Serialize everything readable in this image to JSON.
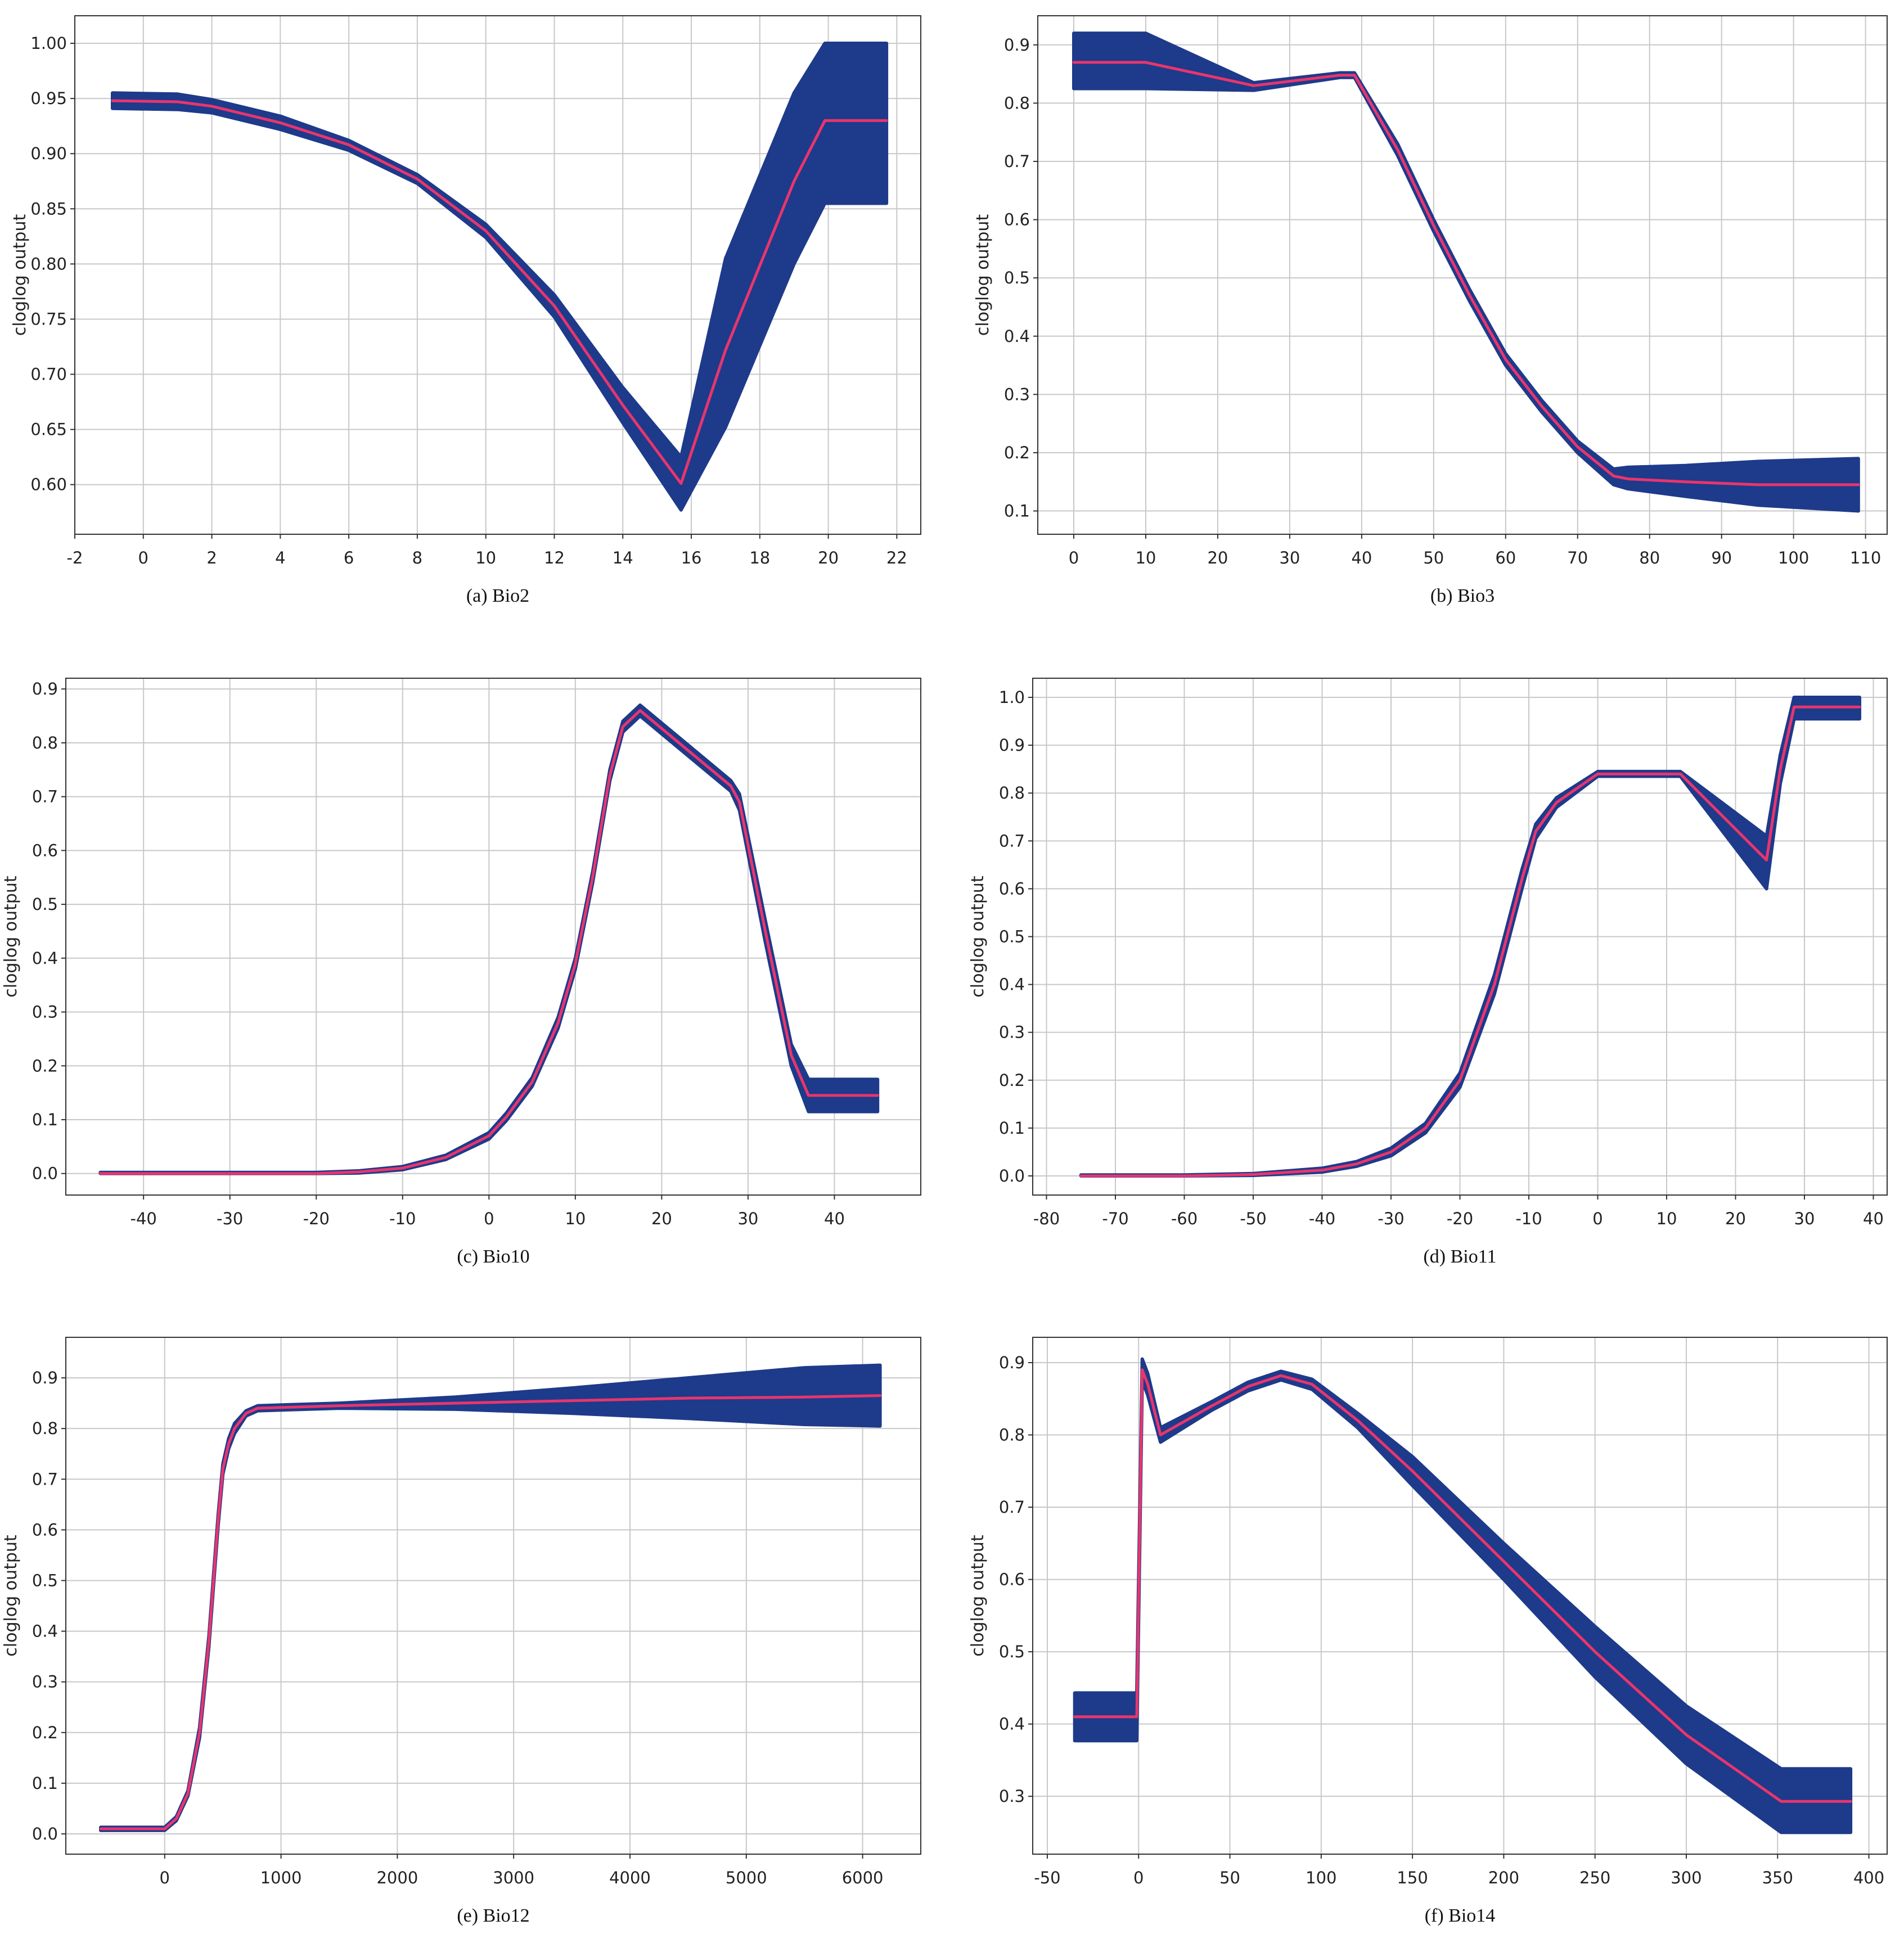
{
  "colors": {
    "band": "#1e3a8a",
    "mean_line": "#e8356d",
    "grid": "#c8c8c8",
    "frame": "#333333",
    "background": "#ffffff"
  },
  "chart_data": [
    {
      "type": "area",
      "caption": "(a)  Bio2",
      "ylabel": "cloglog output",
      "xlabel": "",
      "xlim": [
        -2,
        22.7
      ],
      "ylim": [
        0.555,
        1.025
      ],
      "xticks": [
        -2,
        0,
        2,
        4,
        6,
        8,
        10,
        12,
        14,
        16,
        18,
        20,
        22
      ],
      "xtick_labels": [
        "-2",
        "0",
        "2",
        "4",
        "6",
        "8",
        "10",
        "12",
        "14",
        "16",
        "18",
        "20",
        "22"
      ],
      "yticks": [
        0.6,
        0.65,
        0.7,
        0.75,
        0.8,
        0.85,
        0.9,
        0.95,
        1.0
      ],
      "ytick_labels": [
        "0.60",
        "0.65",
        "0.70",
        "0.75",
        "0.80",
        "0.85",
        "0.90",
        "0.95",
        "1.00"
      ],
      "grid": true,
      "series": [
        {
          "role": "mean",
          "x": [
            -0.9,
            1,
            2,
            4,
            6,
            8,
            10,
            12,
            14,
            15.7,
            17,
            19,
            19.9,
            21.7
          ],
          "y": [
            0.948,
            0.947,
            0.943,
            0.928,
            0.908,
            0.877,
            0.83,
            0.762,
            0.672,
            0.601,
            0.722,
            0.875,
            0.93,
            0.93
          ]
        },
        {
          "role": "band_upper",
          "x": [
            -0.9,
            1,
            2,
            4,
            6,
            8,
            10,
            12,
            14,
            15.7,
            17,
            19,
            19.9,
            21.7
          ],
          "y": [
            0.955,
            0.954,
            0.949,
            0.934,
            0.912,
            0.881,
            0.836,
            0.772,
            0.688,
            0.625,
            0.805,
            0.955,
            1.0,
            1.0
          ]
        },
        {
          "role": "band_lower",
          "x": [
            -0.9,
            1,
            2,
            4,
            6,
            8,
            10,
            12,
            14,
            15.7,
            17,
            19,
            19.9,
            21.7
          ],
          "y": [
            0.941,
            0.94,
            0.937,
            0.922,
            0.903,
            0.873,
            0.824,
            0.752,
            0.656,
            0.577,
            0.652,
            0.8,
            0.855,
            0.855
          ]
        }
      ]
    },
    {
      "type": "area",
      "caption": "(b)  Bio3",
      "ylabel": "cloglog output",
      "xlabel": "",
      "xlim": [
        -5,
        113
      ],
      "ylim": [
        0.06,
        0.95
      ],
      "xticks": [
        0,
        10,
        20,
        30,
        40,
        50,
        60,
        70,
        80,
        90,
        100,
        110
      ],
      "xtick_labels": [
        "0",
        "10",
        "20",
        "30",
        "40",
        "50",
        "60",
        "70",
        "80",
        "90",
        "100",
        "110"
      ],
      "yticks": [
        0.1,
        0.2,
        0.3,
        0.4,
        0.5,
        0.6,
        0.7,
        0.8,
        0.9
      ],
      "ytick_labels": [
        "0.1",
        "0.2",
        "0.3",
        "0.4",
        "0.5",
        "0.6",
        "0.7",
        "0.8",
        "0.9"
      ],
      "grid": true,
      "series": [
        {
          "role": "mean",
          "x": [
            0,
            10,
            25,
            37,
            39,
            45,
            50,
            55,
            60,
            65,
            70,
            75,
            77,
            85,
            95,
            109
          ],
          "y": [
            0.87,
            0.87,
            0.83,
            0.848,
            0.848,
            0.72,
            0.59,
            0.47,
            0.36,
            0.28,
            0.21,
            0.16,
            0.155,
            0.15,
            0.145,
            0.145
          ]
        },
        {
          "role": "band_upper",
          "x": [
            0,
            10,
            25,
            37,
            39,
            45,
            50,
            55,
            60,
            65,
            70,
            75,
            77,
            85,
            95,
            109
          ],
          "y": [
            0.92,
            0.92,
            0.835,
            0.852,
            0.852,
            0.73,
            0.6,
            0.48,
            0.37,
            0.29,
            0.22,
            0.172,
            0.175,
            0.178,
            0.185,
            0.19
          ]
        },
        {
          "role": "band_lower",
          "x": [
            0,
            10,
            25,
            37,
            39,
            45,
            50,
            55,
            60,
            65,
            70,
            75,
            77,
            85,
            95,
            109
          ],
          "y": [
            0.825,
            0.825,
            0.822,
            0.844,
            0.844,
            0.71,
            0.58,
            0.46,
            0.35,
            0.27,
            0.2,
            0.145,
            0.138,
            0.125,
            0.11,
            0.1
          ]
        }
      ]
    },
    {
      "type": "area",
      "caption": "(c)  Bio10",
      "ylabel": "cloglog output",
      "xlabel": "",
      "xlim": [
        -49,
        50
      ],
      "ylim": [
        -0.04,
        0.92
      ],
      "xticks": [
        -40,
        -30,
        -20,
        -10,
        0,
        10,
        20,
        30,
        40
      ],
      "xtick_labels": [
        "-40",
        "-30",
        "-20",
        "-10",
        "0",
        "10",
        "20",
        "30",
        "40"
      ],
      "yticks": [
        0.0,
        0.1,
        0.2,
        0.3,
        0.4,
        0.5,
        0.6,
        0.7,
        0.8,
        0.9
      ],
      "ytick_labels": [
        "0.0",
        "0.1",
        "0.2",
        "0.3",
        "0.4",
        "0.5",
        "0.6",
        "0.7",
        "0.8",
        "0.9"
      ],
      "grid": true,
      "series": [
        {
          "role": "mean",
          "x": [
            -45,
            -20,
            -15,
            -10,
            -5,
            0,
            2,
            5,
            8,
            10,
            12,
            14,
            15.5,
            17.5,
            22,
            28,
            29,
            32,
            35,
            37,
            45
          ],
          "y": [
            0.0,
            0.0,
            0.003,
            0.01,
            0.03,
            0.07,
            0.105,
            0.17,
            0.28,
            0.39,
            0.55,
            0.74,
            0.83,
            0.86,
            0.8,
            0.72,
            0.69,
            0.45,
            0.22,
            0.145,
            0.145
          ]
        },
        {
          "role": "band_upper",
          "x": [
            -45,
            -20,
            -15,
            -10,
            -5,
            0,
            2,
            5,
            8,
            10,
            12,
            14,
            15.5,
            17.5,
            22,
            28,
            29,
            32,
            35,
            37,
            45
          ],
          "y": [
            0.002,
            0.002,
            0.005,
            0.013,
            0.034,
            0.076,
            0.112,
            0.178,
            0.29,
            0.4,
            0.56,
            0.75,
            0.84,
            0.87,
            0.81,
            0.73,
            0.705,
            0.47,
            0.24,
            0.175,
            0.175
          ]
        },
        {
          "role": "band_lower",
          "x": [
            -45,
            -20,
            -15,
            -10,
            -5,
            0,
            2,
            5,
            8,
            10,
            12,
            14,
            15.5,
            17.5,
            22,
            28,
            29,
            32,
            35,
            37,
            45
          ],
          "y": [
            0.0,
            0.0,
            0.001,
            0.007,
            0.026,
            0.064,
            0.098,
            0.162,
            0.27,
            0.38,
            0.54,
            0.73,
            0.82,
            0.85,
            0.79,
            0.71,
            0.675,
            0.43,
            0.2,
            0.115,
            0.115
          ]
        }
      ]
    },
    {
      "type": "area",
      "caption": "(d)  Bio11",
      "ylabel": "cloglog output",
      "xlabel": "",
      "xlim": [
        -82,
        42
      ],
      "ylim": [
        -0.04,
        1.04
      ],
      "xticks": [
        -80,
        -70,
        -60,
        -50,
        -40,
        -30,
        -20,
        -10,
        0,
        10,
        20,
        30,
        40
      ],
      "xtick_labels": [
        "-80",
        "-70",
        "-60",
        "-50",
        "-40",
        "-30",
        "-20",
        "-10",
        "0",
        "10",
        "20",
        "30",
        "40"
      ],
      "yticks": [
        0.0,
        0.1,
        0.2,
        0.3,
        0.4,
        0.5,
        0.6,
        0.7,
        0.8,
        0.9,
        1.0
      ],
      "ytick_labels": [
        "0.0",
        "0.1",
        "0.2",
        "0.3",
        "0.4",
        "0.5",
        "0.6",
        "0.7",
        "0.8",
        "0.9",
        "1.0"
      ],
      "grid": true,
      "series": [
        {
          "role": "mean",
          "x": [
            -75,
            -60,
            -50,
            -40,
            -35,
            -30,
            -25,
            -20,
            -15,
            -11,
            -9,
            -6,
            0,
            12,
            24.5,
            26.5,
            28.5,
            38
          ],
          "y": [
            0.0,
            0.0,
            0.003,
            0.012,
            0.025,
            0.05,
            0.1,
            0.2,
            0.4,
            0.62,
            0.72,
            0.78,
            0.84,
            0.84,
            0.66,
            0.85,
            0.98,
            0.98
          ]
        },
        {
          "role": "band_upper",
          "x": [
            -75,
            -60,
            -50,
            -40,
            -35,
            -30,
            -25,
            -20,
            -15,
            -11,
            -9,
            -6,
            0,
            12,
            24.5,
            26.5,
            28.5,
            38
          ],
          "y": [
            0.002,
            0.002,
            0.005,
            0.016,
            0.03,
            0.058,
            0.11,
            0.215,
            0.42,
            0.64,
            0.735,
            0.79,
            0.845,
            0.845,
            0.71,
            0.88,
            1.0,
            1.0
          ]
        },
        {
          "role": "band_lower",
          "x": [
            -75,
            -60,
            -50,
            -40,
            -35,
            -30,
            -25,
            -20,
            -15,
            -11,
            -9,
            -6,
            0,
            12,
            24.5,
            26.5,
            28.5,
            38
          ],
          "y": [
            0.0,
            0.0,
            0.001,
            0.008,
            0.02,
            0.042,
            0.09,
            0.185,
            0.38,
            0.6,
            0.705,
            0.77,
            0.835,
            0.835,
            0.6,
            0.82,
            0.955,
            0.955
          ]
        }
      ]
    },
    {
      "type": "area",
      "caption": "(e)  Bio12",
      "ylabel": "cloglog output",
      "xlabel": "",
      "xlim": [
        -850,
        6500
      ],
      "ylim": [
        -0.04,
        0.98
      ],
      "xticks": [
        0,
        1000,
        2000,
        3000,
        4000,
        5000,
        6000
      ],
      "xtick_labels": [
        "0",
        "1000",
        "2000",
        "3000",
        "4000",
        "5000",
        "6000"
      ],
      "yticks": [
        0.0,
        0.1,
        0.2,
        0.3,
        0.4,
        0.5,
        0.6,
        0.7,
        0.8,
        0.9
      ],
      "ytick_labels": [
        "0.0",
        "0.1",
        "0.2",
        "0.3",
        "0.4",
        "0.5",
        "0.6",
        "0.7",
        "0.8",
        "0.9"
      ],
      "grid": true,
      "series": [
        {
          "role": "mean",
          "x": [
            -550,
            0,
            100,
            200,
            300,
            380,
            420,
            460,
            500,
            550,
            600,
            700,
            800,
            1500,
            2500,
            3500,
            4500,
            5500,
            6150
          ],
          "y": [
            0.01,
            0.01,
            0.03,
            0.08,
            0.2,
            0.38,
            0.5,
            0.62,
            0.72,
            0.77,
            0.8,
            0.83,
            0.84,
            0.845,
            0.85,
            0.855,
            0.86,
            0.862,
            0.865
          ]
        },
        {
          "role": "band_upper",
          "x": [
            -550,
            0,
            100,
            200,
            300,
            380,
            420,
            460,
            500,
            550,
            600,
            700,
            800,
            1500,
            2500,
            3500,
            4500,
            5500,
            6150
          ],
          "y": [
            0.013,
            0.013,
            0.034,
            0.085,
            0.21,
            0.39,
            0.51,
            0.63,
            0.73,
            0.78,
            0.81,
            0.835,
            0.845,
            0.85,
            0.862,
            0.88,
            0.9,
            0.92,
            0.925
          ]
        },
        {
          "role": "band_lower",
          "x": [
            -550,
            0,
            100,
            200,
            300,
            380,
            420,
            460,
            500,
            550,
            600,
            700,
            800,
            1500,
            2500,
            3500,
            4500,
            5500,
            6150
          ],
          "y": [
            0.007,
            0.007,
            0.026,
            0.075,
            0.19,
            0.37,
            0.49,
            0.61,
            0.71,
            0.76,
            0.79,
            0.825,
            0.835,
            0.84,
            0.838,
            0.83,
            0.82,
            0.808,
            0.805
          ]
        }
      ]
    },
    {
      "type": "area",
      "caption": "(f)  Bio14",
      "ylabel": "cloglog output",
      "xlabel": "",
      "xlim": [
        -58,
        410
      ],
      "ylim": [
        0.22,
        0.935
      ],
      "xticks": [
        -50,
        0,
        50,
        100,
        150,
        200,
        250,
        300,
        350,
        400
      ],
      "xtick_labels": [
        "-50",
        "0",
        "50",
        "100",
        "150",
        "200",
        "250",
        "300",
        "350",
        "400"
      ],
      "yticks": [
        0.3,
        0.4,
        0.5,
        0.6,
        0.7,
        0.8,
        0.9
      ],
      "ytick_labels": [
        "0.3",
        "0.4",
        "0.5",
        "0.6",
        "0.7",
        "0.8",
        "0.9"
      ],
      "grid": true,
      "series": [
        {
          "role": "mean",
          "x": [
            -35,
            -1,
            2,
            5,
            12,
            40,
            60,
            78,
            95,
            120,
            150,
            200,
            250,
            300,
            352,
            390
          ],
          "y": [
            0.41,
            0.41,
            0.89,
            0.87,
            0.8,
            0.84,
            0.867,
            0.882,
            0.87,
            0.82,
            0.75,
            0.625,
            0.5,
            0.385,
            0.293,
            0.293
          ]
        },
        {
          "role": "band_upper",
          "x": [
            -35,
            -1,
            2,
            5,
            12,
            40,
            60,
            78,
            95,
            120,
            150,
            200,
            250,
            300,
            352,
            390
          ],
          "y": [
            0.443,
            0.443,
            0.905,
            0.885,
            0.81,
            0.846,
            0.873,
            0.888,
            0.877,
            0.83,
            0.77,
            0.65,
            0.535,
            0.425,
            0.338,
            0.338
          ]
        },
        {
          "role": "band_lower",
          "x": [
            -35,
            -1,
            2,
            5,
            12,
            40,
            60,
            78,
            95,
            120,
            150,
            200,
            250,
            300,
            352,
            390
          ],
          "y": [
            0.377,
            0.377,
            0.875,
            0.855,
            0.79,
            0.834,
            0.861,
            0.876,
            0.863,
            0.81,
            0.73,
            0.6,
            0.465,
            0.345,
            0.25,
            0.25
          ]
        }
      ]
    }
  ]
}
